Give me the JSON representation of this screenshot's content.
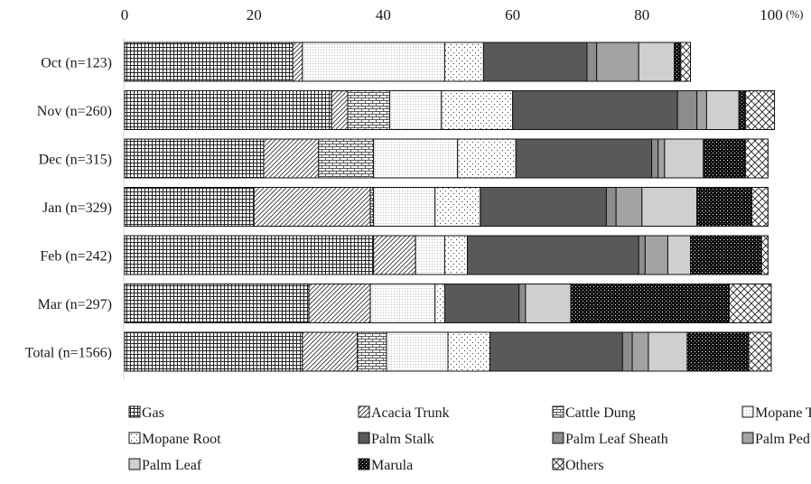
{
  "chart_data": {
    "type": "bar",
    "orientation": "horizontal",
    "stacked": true,
    "unit": "(%)",
    "xlim": [
      0,
      100
    ],
    "xticks": [
      "0",
      "20",
      "40",
      "60",
      "80",
      "100"
    ],
    "xtick_values": [
      0,
      20,
      40,
      60,
      80,
      100
    ],
    "categories": [
      "Oct (n=123)",
      "Nov (n=260)",
      "Dec (n=315)",
      "Jan (n=329)",
      "Feb (n=242)",
      "Mar (n=297)",
      "Total (n=1566)"
    ],
    "series": [
      {
        "name": "Gas",
        "pattern": "grid",
        "values": [
          26.0,
          32.0,
          21.5,
          20.0,
          38.5,
          28.5,
          27.5
        ]
      },
      {
        "name": "Acacia Trunk",
        "pattern": "diag",
        "values": [
          1.5,
          2.5,
          8.5,
          18.0,
          6.5,
          9.5,
          8.5
        ]
      },
      {
        "name": "Cattle Dung",
        "pattern": "brick",
        "values": [
          0,
          6.5,
          8.5,
          0.5,
          0,
          0,
          4.5
        ]
      },
      {
        "name": "Mopane Trunk",
        "pattern": "dots-fine",
        "values": [
          22.0,
          8.0,
          13.0,
          9.5,
          4.5,
          10.0,
          9.5
        ]
      },
      {
        "name": "Mopane Root",
        "pattern": "dots-sparse",
        "values": [
          6.0,
          11.0,
          9.0,
          7.0,
          3.5,
          1.5,
          6.5
        ]
      },
      {
        "name": "Palm Stalk",
        "pattern": "dark-gray",
        "values": [
          16.0,
          25.5,
          21.0,
          19.5,
          26.5,
          11.5,
          20.5
        ]
      },
      {
        "name": "Palm Leaf Sheath",
        "pattern": "mid-gray",
        "values": [
          1.5,
          3.0,
          1.0,
          1.5,
          1.0,
          1.0,
          1.5
        ]
      },
      {
        "name": "Palm Peduncle",
        "pattern": "mid-gray2",
        "values": [
          6.5,
          1.5,
          1.0,
          4.0,
          3.5,
          0,
          2.5
        ]
      },
      {
        "name": "Palm Leaf",
        "pattern": "light-gray",
        "values": [
          5.5,
          5.0,
          6.0,
          8.5,
          3.5,
          7.0,
          6.0
        ]
      },
      {
        "name": "Marula",
        "pattern": "black-dots",
        "values": [
          1.0,
          1.0,
          6.5,
          8.5,
          11.0,
          24.5,
          9.5
        ]
      },
      {
        "name": "Others",
        "pattern": "crosshatch",
        "values": [
          1.5,
          4.5,
          3.5,
          2.5,
          1.0,
          6.5,
          3.5
        ]
      }
    ],
    "grid": false,
    "legend": "bottom"
  }
}
